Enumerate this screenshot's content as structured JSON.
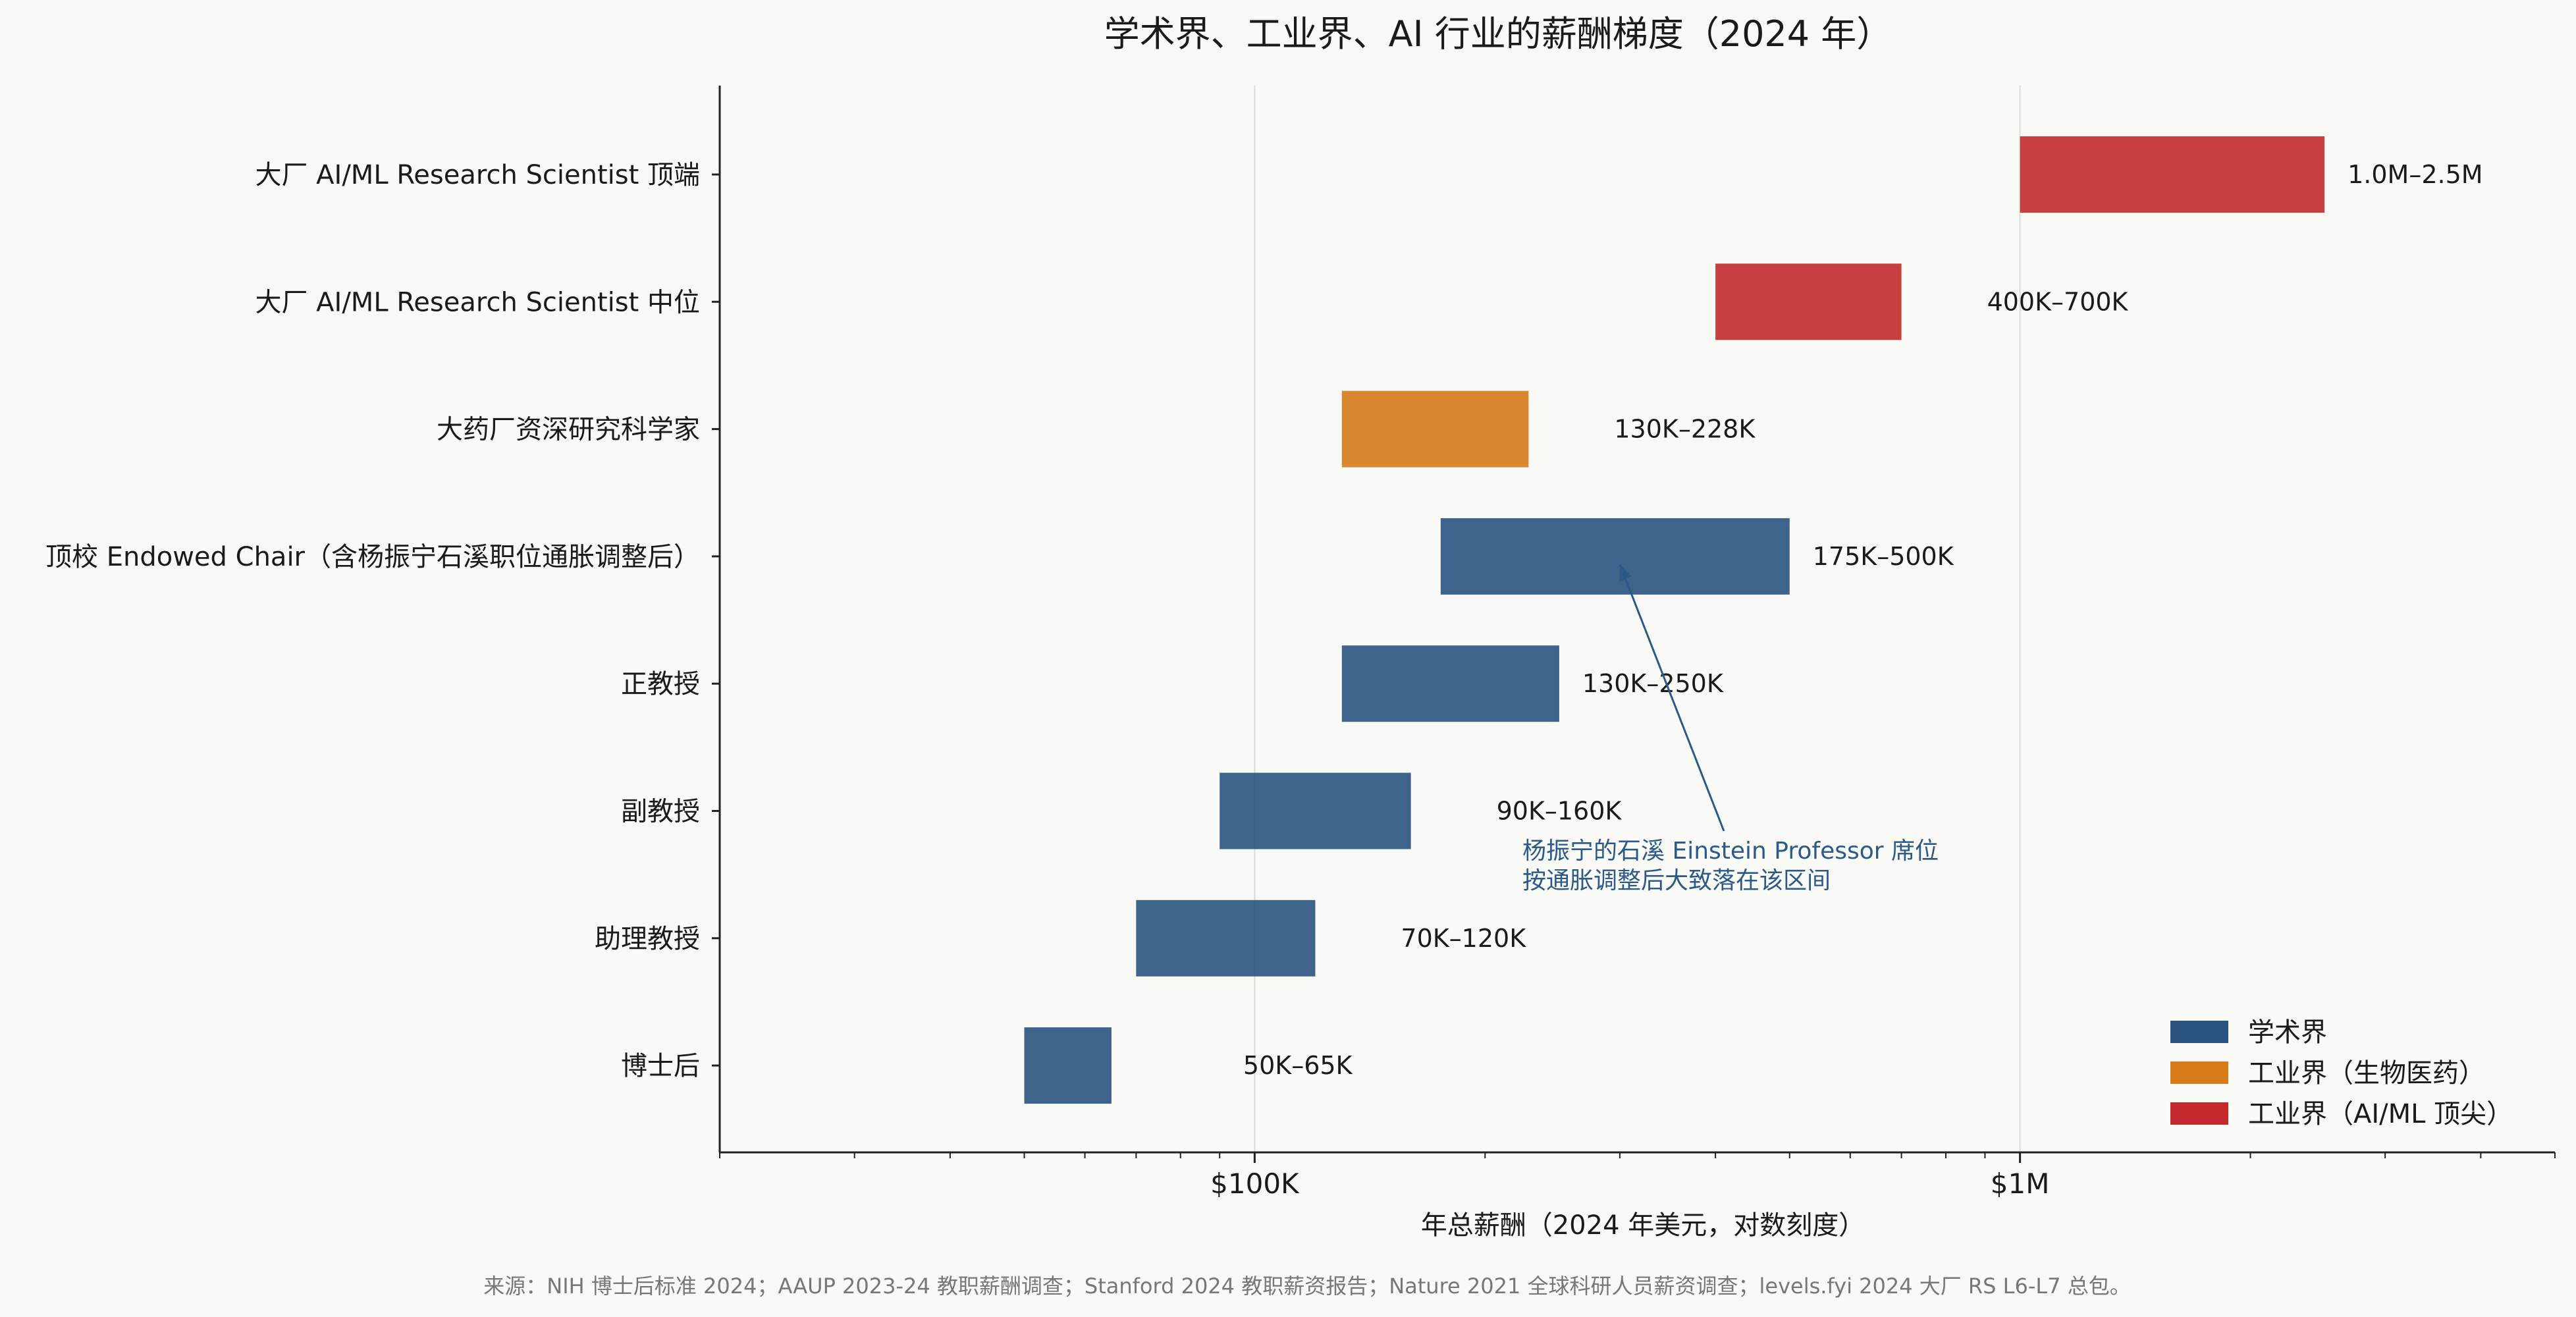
{
  "chart_data": {
    "type": "bar",
    "orientation": "horizontal-range",
    "title": "学术界、工业界、AI 行业的薪酬梯度（2024 年）",
    "xlabel": "年总薪酬（2024 年美元，对数刻度）",
    "xscale": "log",
    "xlim": [
      20000,
      5000000
    ],
    "xticks": [
      {
        "value": 100000,
        "label": "$100K"
      },
      {
        "value": 1000000,
        "label": "$1M"
      }
    ],
    "grid": "vertical major ticks",
    "legend_position": "bottom-right",
    "legend": [
      {
        "label": "学术界",
        "color": "#1f4a78"
      },
      {
        "label": "工业界（生物医药）",
        "color": "#d4740c"
      },
      {
        "label": "工业界（AI/ML 顶尖）",
        "color": "#bf1e22"
      }
    ],
    "bars": [
      {
        "category": "大厂 AI/ML Research Scientist 顶端",
        "low": 1000000,
        "high": 2500000,
        "group": "ai",
        "label": "1.0M–2.5M"
      },
      {
        "category": "大厂 AI/ML Research Scientist 中位",
        "low": 400000,
        "high": 700000,
        "group": "ai",
        "label": "400K–700K"
      },
      {
        "category": "大药厂资深研究科学家",
        "low": 130000,
        "high": 228000,
        "group": "bio",
        "label": "130K–228K"
      },
      {
        "category": "顶校 Endowed Chair（含杨振宁石溪职位通胀调整后）",
        "low": 175000,
        "high": 500000,
        "group": "academia",
        "label": "175K–500K"
      },
      {
        "category": "正教授",
        "low": 130000,
        "high": 250000,
        "group": "academia",
        "label": "130K–250K"
      },
      {
        "category": "副教授",
        "low": 90000,
        "high": 160000,
        "group": "academia",
        "label": "90K–160K"
      },
      {
        "category": "助理教授",
        "low": 70000,
        "high": 120000,
        "group": "academia",
        "label": "70K–120K"
      },
      {
        "category": "博士后",
        "low": 50000,
        "high": 65000,
        "group": "academia",
        "label": "50K–65K"
      }
    ],
    "annotation": {
      "text_lines": [
        "杨振宁的石溪 Einstein Professor 席位",
        "按通胀调整后大致落在该区间"
      ],
      "target_category": "顶校 Endowed Chair（含杨振宁石溪职位通胀调整后）",
      "target_value": 300000,
      "color": "#2b5a8a"
    }
  },
  "source_note": "来源：NIH 博士后标准 2024；AAUP 2023-24 教职薪酬调查；Stanford 2024 教职薪资报告；Nature 2021 全球科研人员薪资调查；levels.fyi 2024 大厂 RS L6-L7 总包。",
  "colors": {
    "academia": "#1f4a78",
    "bio": "#d4740c",
    "ai": "#bf1e22",
    "background": "#f9f9f5"
  }
}
